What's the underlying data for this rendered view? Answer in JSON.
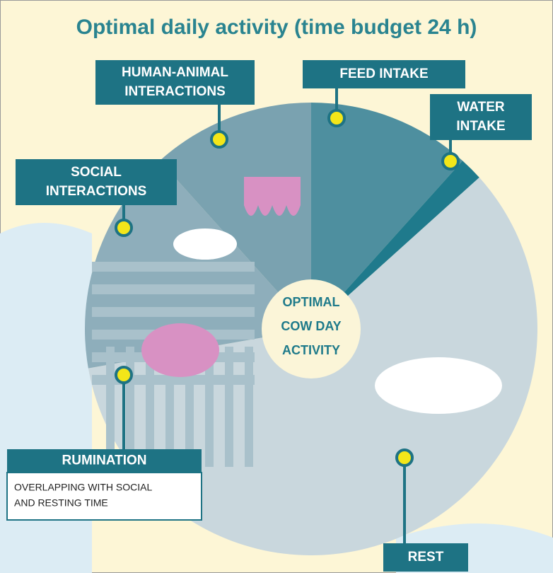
{
  "title": "Optimal daily activity (time budget 24 h)",
  "center": [
    "OPTIMAL",
    "COW DAY",
    "ACTIVITY"
  ],
  "labels": [
    {
      "lines": [
        "HUMAN-ANIMAL",
        "INTERACTIONS"
      ]
    },
    {
      "lines": [
        "FEED INTAKE"
      ]
    },
    {
      "lines": [
        "WATER",
        "INTAKE"
      ]
    },
    {
      "lines": [
        "SOCIAL",
        "INTERACTIONS"
      ]
    },
    {
      "lines": [
        "RUMINATION"
      ],
      "note": [
        "OVERLAPPING WITH SOCIAL",
        "AND RESTING TIME"
      ]
    },
    {
      "lines": [
        "REST"
      ]
    }
  ]
}
